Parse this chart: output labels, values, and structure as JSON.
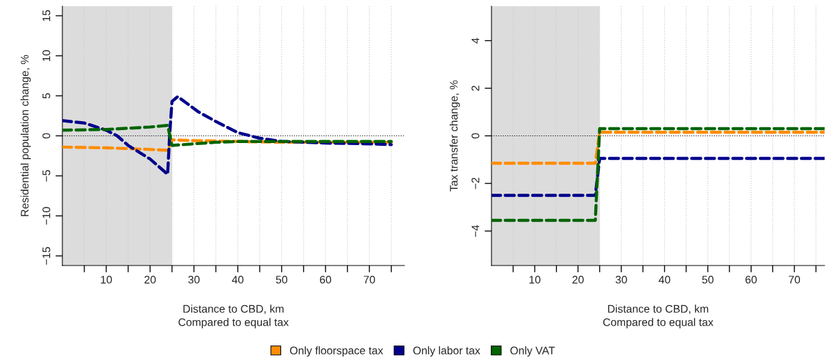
{
  "chart_data": [
    {
      "type": "line",
      "xlabel": "Distance to CBD, km\nCompared to equal tax",
      "ylabel": "Residential population change, %",
      "xlim": [
        0,
        78
      ],
      "ylim": [
        -16.2,
        16.2
      ],
      "xticks": [
        {
          "value": 5,
          "label": null
        },
        10,
        {
          "value": 15,
          "label": null
        },
        20,
        {
          "value": 25,
          "label": null
        },
        30,
        {
          "value": 35,
          "label": null
        },
        40,
        {
          "value": 45,
          "label": null
        },
        50,
        {
          "value": 55,
          "label": null
        },
        60,
        {
          "value": 65,
          "label": null
        },
        70,
        {
          "value": 75,
          "label": null
        }
      ],
      "yticks": [
        {
          "value": -15,
          "label": "−15"
        },
        {
          "value": -10,
          "label": "−10"
        },
        {
          "value": -5,
          "label": "−5"
        },
        0,
        5,
        10,
        15
      ],
      "grid": "x",
      "line_style": "dashed",
      "legend": "bottom",
      "bands": [
        {
          "axis": "x",
          "from": 0,
          "to": 25,
          "color": "#dcdcdc"
        }
      ],
      "ref_lines": [
        {
          "axis": "y",
          "value": 0,
          "color": "#000000",
          "line_style": "dotted"
        }
      ],
      "series": [
        {
          "name": "Only floorspace tax",
          "color": "#ff8c00",
          "x": [
            0,
            10,
            20,
            24,
            25,
            30,
            40,
            50,
            60,
            75
          ],
          "values": [
            -1.4,
            -1.5,
            -1.7,
            -1.8,
            -0.5,
            -0.6,
            -0.7,
            -0.8,
            -0.8,
            -0.8
          ]
        },
        {
          "name": "Only labor tax",
          "color": "#00008b",
          "x": [
            0,
            5,
            10,
            12.5,
            15,
            20,
            24,
            24.5,
            25,
            26.3,
            31,
            35,
            40,
            45,
            50,
            60,
            70,
            75
          ],
          "values": [
            1.9,
            1.6,
            0.7,
            0,
            -1.2,
            -2.9,
            -4.8,
            0.5,
            4.3,
            4.9,
            3.0,
            1.8,
            0.4,
            -0.3,
            -0.7,
            -0.9,
            -1.0,
            -1.1
          ]
        },
        {
          "name": "Only VAT",
          "color": "#006400",
          "x": [
            0,
            10,
            20,
            24,
            25,
            30,
            35,
            40,
            50,
            60,
            75
          ],
          "values": [
            0.7,
            0.8,
            1.1,
            1.3,
            -1.2,
            -1.0,
            -0.8,
            -0.7,
            -0.7,
            -0.7,
            -0.7
          ]
        }
      ]
    },
    {
      "type": "line",
      "xlabel": "Distance to CBD, km\nCompared to equal tax",
      "ylabel": "Tax transfer change, %",
      "xlim": [
        0,
        77
      ],
      "ylim": [
        -5.45,
        5.45
      ],
      "xticks": [
        {
          "value": 5,
          "label": null
        },
        10,
        {
          "value": 15,
          "label": null
        },
        20,
        {
          "value": 25,
          "label": null
        },
        30,
        {
          "value": 35,
          "label": null
        },
        40,
        {
          "value": 45,
          "label": null
        },
        50,
        {
          "value": 55,
          "label": null
        },
        60,
        {
          "value": 65,
          "label": null
        },
        70,
        {
          "value": 75,
          "label": null
        }
      ],
      "yticks": [
        {
          "value": -4,
          "label": "−4"
        },
        {
          "value": -2,
          "label": "−2"
        },
        0,
        2,
        4
      ],
      "grid": "x",
      "line_style": "dashed",
      "bands": [
        {
          "axis": "x",
          "from": 0,
          "to": 25,
          "color": "#dcdcdc"
        }
      ],
      "ref_lines": [
        {
          "axis": "y",
          "value": 0,
          "color": "#000000",
          "line_style": "dotted"
        }
      ],
      "series": [
        {
          "color": "#ff8c00",
          "x": [
            0,
            24,
            25,
            77
          ],
          "values": [
            -1.15,
            -1.15,
            0.15,
            0.15
          ]
        },
        {
          "color": "#00008b",
          "x": [
            0,
            24,
            25,
            77
          ],
          "values": [
            -2.5,
            -2.5,
            -0.95,
            -0.95
          ]
        },
        {
          "color": "#006400",
          "x": [
            0,
            24,
            25,
            77
          ],
          "values": [
            -3.55,
            -3.55,
            0.3,
            0.3
          ]
        }
      ]
    }
  ]
}
